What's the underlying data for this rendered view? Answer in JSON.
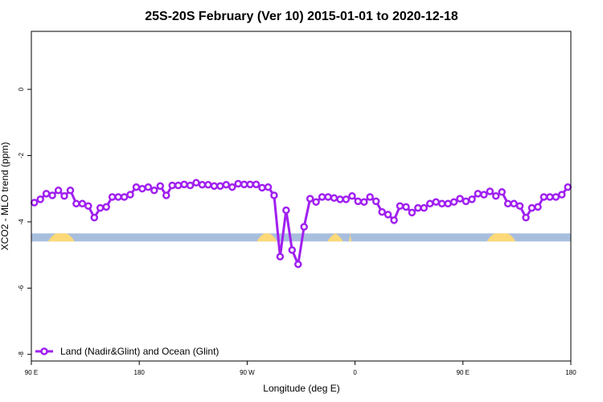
{
  "chart_data": {
    "type": "line",
    "title": "25S-20S February (Ver 10)   2015-01-01 to 2020-12-18",
    "xlabel": "Longitude (deg E)",
    "ylabel": "XCO2 - MLO trend (ppm)",
    "xlim": [
      90,
      540
    ],
    "ylim": [
      -8.2,
      1.75
    ],
    "x_ticks": [
      {
        "value": 90,
        "label": "90 E"
      },
      {
        "value": 180,
        "label": "180"
      },
      {
        "value": 270,
        "label": "90 W"
      },
      {
        "value": 360,
        "label": "0"
      },
      {
        "value": 450,
        "label": "90 E"
      },
      {
        "value": 540,
        "label": "180"
      }
    ],
    "y_ticks": [
      {
        "value": 0,
        "label": "0"
      },
      {
        "value": -2,
        "label": "-2"
      },
      {
        "value": -4,
        "label": "-4"
      },
      {
        "value": -6,
        "label": "-6"
      },
      {
        "value": -8,
        "label": "-8"
      }
    ],
    "grid": false,
    "legend_position": "bottom-left",
    "series": [
      {
        "name": "Land (Nadir&Glint) and Ocean (Glint)",
        "color": "#a020f0",
        "x": [
          92.5,
          97.5,
          102.5,
          107.5,
          112.5,
          117.5,
          122.5,
          127.5,
          132.5,
          137.5,
          142.5,
          147.5,
          152.5,
          157.5,
          162.5,
          167.5,
          172.5,
          177.5,
          182.5,
          187.5,
          192.5,
          197.5,
          202.5,
          207.5,
          212.5,
          217.5,
          222.5,
          227.5,
          232.5,
          237.5,
          242.5,
          247.5,
          252.5,
          257.5,
          262.5,
          267.5,
          272.5,
          277.5,
          282.5,
          287.5,
          292.5,
          297.5,
          302.5,
          307.5,
          312.5,
          317.5,
          322.5,
          327.5,
          332.5,
          337.5,
          342.5,
          347.5,
          352.5,
          357.5,
          362.5,
          367.5,
          372.5,
          377.5,
          382.5,
          387.5,
          392.5,
          397.5,
          402.5,
          407.5,
          412.5,
          417.5,
          422.5,
          427.5,
          432.5,
          437.5,
          442.5,
          447.5,
          452.5,
          457.5,
          462.5,
          467.5,
          472.5,
          477.5,
          482.5,
          487.5,
          492.5,
          497.5,
          502.5,
          507.5,
          512.5,
          517.5,
          522.5,
          527.5,
          532.5,
          537.5
        ],
        "y": [
          -3.42,
          -3.32,
          -3.15,
          -3.2,
          -3.05,
          -3.22,
          -3.05,
          -3.45,
          -3.45,
          -3.52,
          -3.87,
          -3.58,
          -3.55,
          -3.25,
          -3.25,
          -3.25,
          -3.18,
          -2.95,
          -3.0,
          -2.95,
          -3.05,
          -2.92,
          -3.2,
          -2.9,
          -2.9,
          -2.87,
          -2.9,
          -2.82,
          -2.88,
          -2.88,
          -2.92,
          -2.92,
          -2.88,
          -2.95,
          -2.85,
          -2.87,
          -2.87,
          -2.87,
          -2.97,
          -2.95,
          -3.2,
          -5.05,
          -3.65,
          -4.85,
          -5.28,
          -4.15,
          -3.3,
          -3.4,
          -3.25,
          -3.25,
          -3.28,
          -3.32,
          -3.32,
          -3.22,
          -3.38,
          -3.4,
          -3.25,
          -3.38,
          -3.7,
          -3.78,
          -3.95,
          -3.52,
          -3.55,
          -3.72,
          -3.58,
          -3.58,
          -3.45,
          -3.4,
          -3.45,
          -3.45,
          -3.4,
          -3.3,
          -3.38,
          -3.32,
          -3.15,
          -3.18,
          -3.08,
          -3.22,
          -3.1,
          -3.45,
          -3.45,
          -3.52,
          -3.87,
          -3.58,
          -3.55,
          -3.25,
          -3.25,
          -3.25,
          -3.18,
          -2.95
        ]
      }
    ],
    "surface_strip": {
      "y_center": -4.47,
      "ocean_color": "#a8bede",
      "land_color": "#fdd978",
      "land_spans": [
        [
          104,
          126
        ],
        [
          278,
          295
        ],
        [
          337,
          350
        ],
        [
          355,
          357
        ],
        [
          470,
          494
        ]
      ]
    }
  }
}
